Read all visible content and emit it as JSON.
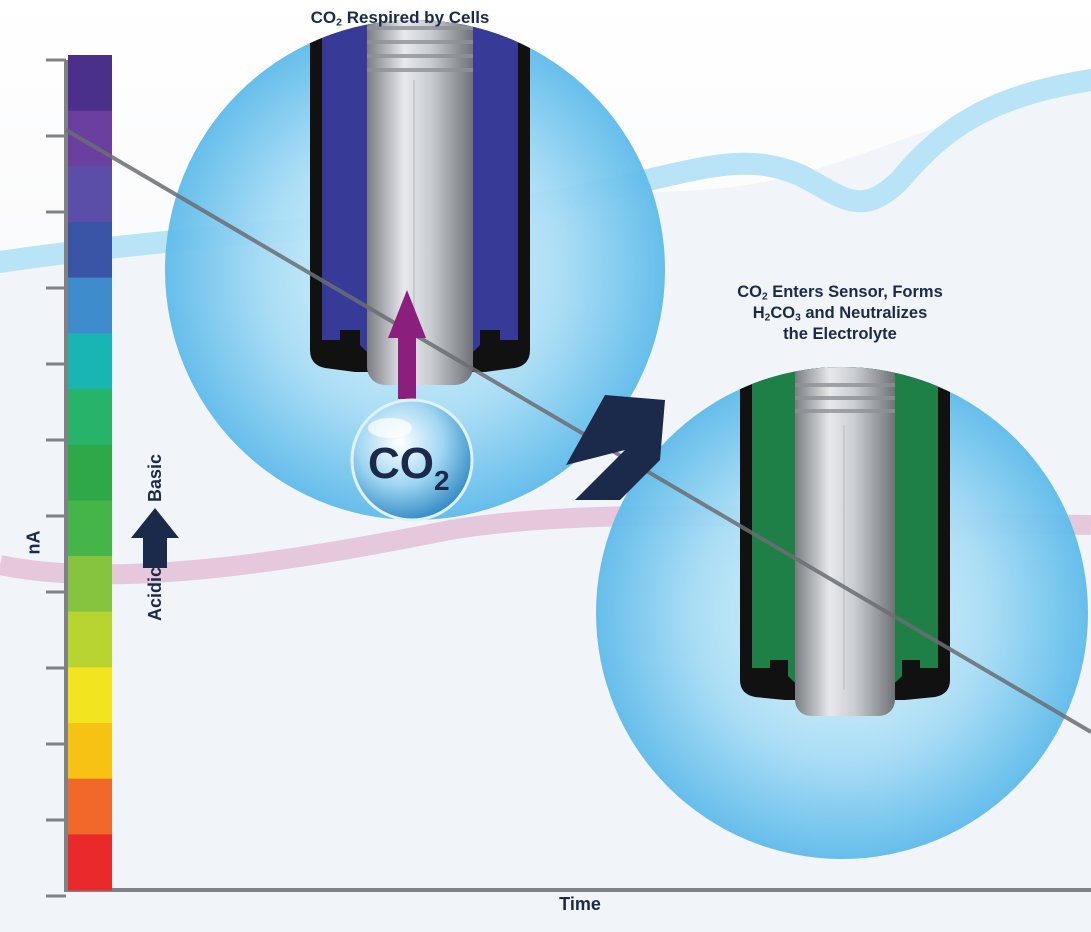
{
  "title_respired": {
    "prefix": "CO",
    "sub": "2",
    "suffix": " Respired by Cells"
  },
  "title_enters": {
    "line1_prefix": "CO",
    "line1_sub": "2",
    "line1_suffix": " Enters Sensor, Forms",
    "line2_a": "H",
    "line2_sub1": "2",
    "line2_b": "CO",
    "line2_sub2": "3",
    "line2_c": " and Neutralizes",
    "line3": "the Electrolyte"
  },
  "bubble": {
    "prefix": "CO",
    "sub": "2"
  },
  "axis": {
    "x_label": "Time",
    "y_label": "nA"
  },
  "scale_labels": {
    "basic": "Basic",
    "acidic": "Acidic"
  },
  "colors": {
    "dark_navy": "#1b2a4a",
    "purple_arrow": "#8b1f7e",
    "electrolyte_basic": "#3b3fa3",
    "electrolyte_neutral": "#1f8a4c",
    "sphere_blue": "#6cc4ee",
    "wave_blue": "#b9e3f6",
    "wave_pink": "#e6c8dc",
    "ph_scale": [
      "#4a3088",
      "#6a3fa0",
      "#5b4ea8",
      "#3a55a6",
      "#3f8ccd",
      "#19b5b3",
      "#27b36a",
      "#2fa84a",
      "#45b54a",
      "#86c440",
      "#b8d431",
      "#f2e41e",
      "#f6c214",
      "#f0682a",
      "#ea2a2a"
    ]
  }
}
